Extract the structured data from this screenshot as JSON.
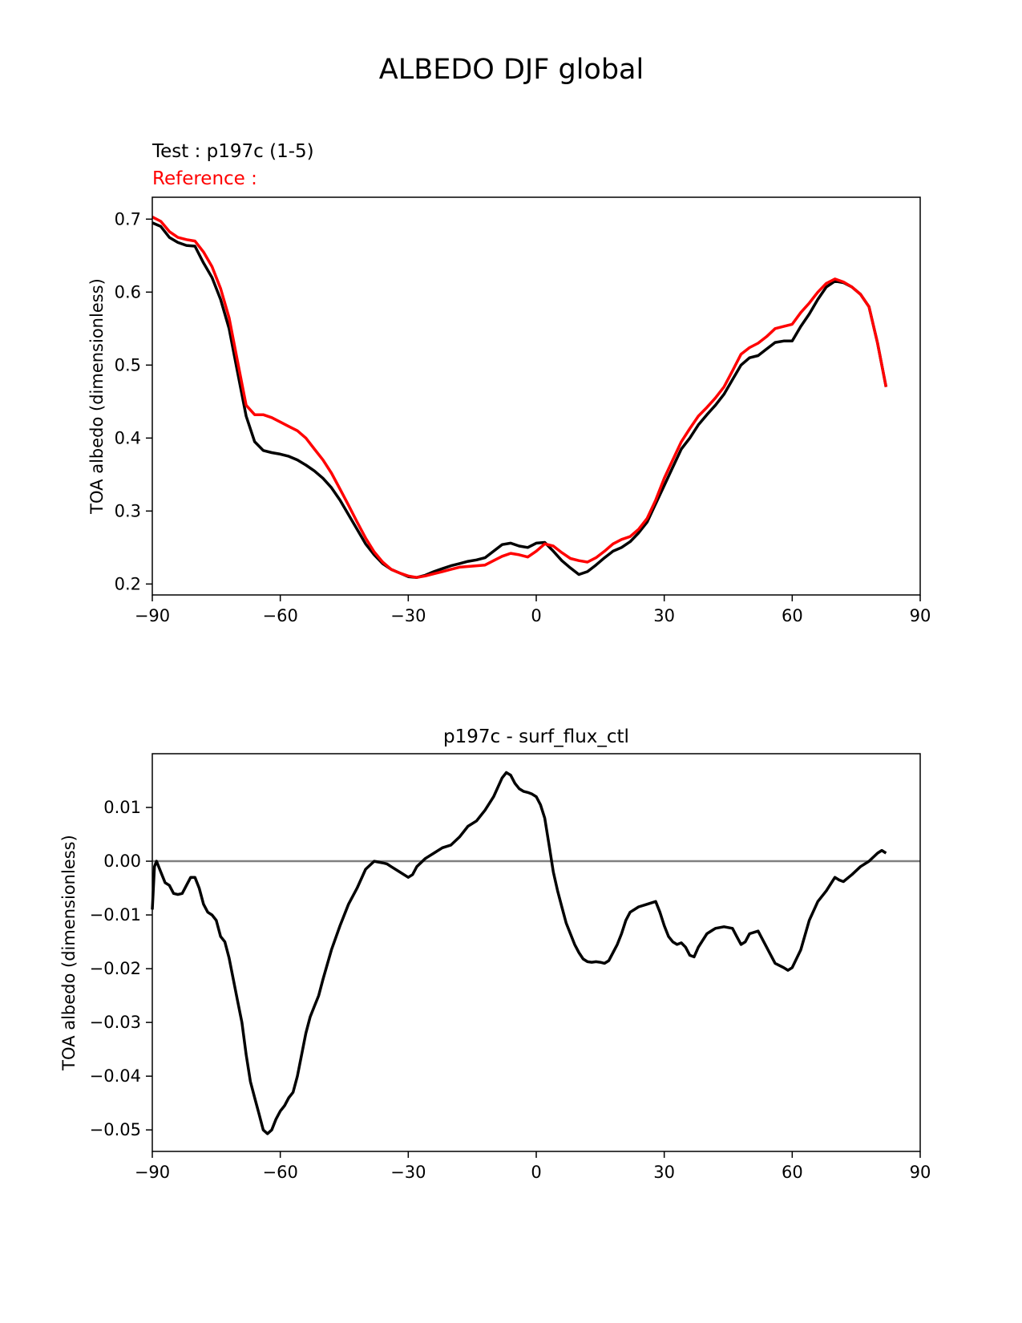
{
  "figure": {
    "title": "ALBEDO DJF global"
  },
  "chart_data": [
    {
      "type": "line",
      "test_label": "Test : p197c (1-5)",
      "reference_label": "Reference :",
      "ylabel": "TOA albedo (dimensionless)",
      "xlabel": "",
      "xlim": [
        -90,
        90
      ],
      "ylim": [
        0.185,
        0.73
      ],
      "xticks": [
        -90,
        -60,
        -30,
        0,
        30,
        60,
        90
      ],
      "xtick_labels": [
        "−90",
        "−60",
        "−30",
        "0",
        "30",
        "60",
        "90"
      ],
      "yticks": [
        0.2,
        0.3,
        0.4,
        0.5,
        0.6,
        0.7
      ],
      "ytick_labels": [
        "0.2",
        "0.3",
        "0.4",
        "0.5",
        "0.6",
        "0.7"
      ],
      "grid": false,
      "series": [
        {
          "color": "#000000",
          "x": [
            -90,
            -88,
            -86,
            -84,
            -82,
            -80,
            -78,
            -76,
            -74,
            -72,
            -70,
            -68,
            -66,
            -64,
            -62,
            -60,
            -58,
            -56,
            -54,
            -52,
            -50,
            -48,
            -46,
            -44,
            -42,
            -40,
            -38,
            -36,
            -34,
            -32,
            -30,
            -28,
            -26,
            -24,
            -22,
            -20,
            -18,
            -16,
            -14,
            -12,
            -10,
            -8,
            -6,
            -4,
            -2,
            0,
            2,
            4,
            6,
            8,
            10,
            12,
            14,
            16,
            18,
            20,
            22,
            24,
            26,
            28,
            30,
            32,
            34,
            36,
            38,
            40,
            42,
            44,
            46,
            48,
            50,
            52,
            54,
            56,
            58,
            60,
            62,
            64,
            66,
            68,
            70,
            72,
            74,
            76,
            78,
            80,
            82
          ],
          "y": [
            0.695,
            0.69,
            0.675,
            0.668,
            0.664,
            0.663,
            0.64,
            0.62,
            0.59,
            0.55,
            0.49,
            0.43,
            0.395,
            0.383,
            0.38,
            0.378,
            0.375,
            0.37,
            0.363,
            0.355,
            0.345,
            0.332,
            0.315,
            0.295,
            0.275,
            0.255,
            0.24,
            0.228,
            0.22,
            0.215,
            0.21,
            0.209,
            0.212,
            0.217,
            0.221,
            0.225,
            0.228,
            0.231,
            0.233,
            0.236,
            0.245,
            0.254,
            0.256,
            0.252,
            0.25,
            0.256,
            0.257,
            0.245,
            0.232,
            0.222,
            0.213,
            0.217,
            0.226,
            0.236,
            0.245,
            0.25,
            0.258,
            0.27,
            0.285,
            0.31,
            0.335,
            0.36,
            0.385,
            0.4,
            0.418,
            0.432,
            0.445,
            0.46,
            0.48,
            0.5,
            0.51,
            0.513,
            0.522,
            0.531,
            0.533,
            0.533,
            0.553,
            0.57,
            0.59,
            0.607,
            0.615,
            0.613,
            0.607,
            0.597,
            0.58,
            0.53,
            0.47
          ]
        },
        {
          "color": "#ff0000",
          "x": [
            -90,
            -88,
            -86,
            -84,
            -82,
            -80,
            -78,
            -76,
            -74,
            -72,
            -70,
            -68,
            -66,
            -64,
            -62,
            -60,
            -58,
            -56,
            -54,
            -52,
            -50,
            -48,
            -46,
            -44,
            -42,
            -40,
            -38,
            -36,
            -34,
            -32,
            -30,
            -28,
            -26,
            -24,
            -22,
            -20,
            -18,
            -16,
            -14,
            -12,
            -10,
            -8,
            -6,
            -4,
            -2,
            0,
            2,
            4,
            6,
            8,
            10,
            12,
            14,
            16,
            18,
            20,
            22,
            24,
            26,
            28,
            30,
            32,
            34,
            36,
            38,
            40,
            42,
            44,
            46,
            48,
            50,
            52,
            54,
            56,
            58,
            60,
            62,
            64,
            66,
            68,
            70,
            72,
            74,
            76,
            78,
            80,
            82
          ],
          "y": [
            0.703,
            0.697,
            0.683,
            0.675,
            0.672,
            0.67,
            0.655,
            0.635,
            0.605,
            0.565,
            0.505,
            0.445,
            0.432,
            0.432,
            0.428,
            0.422,
            0.416,
            0.41,
            0.4,
            0.385,
            0.37,
            0.352,
            0.33,
            0.308,
            0.285,
            0.263,
            0.244,
            0.23,
            0.22,
            0.215,
            0.211,
            0.209,
            0.211,
            0.214,
            0.217,
            0.22,
            0.223,
            0.224,
            0.225,
            0.226,
            0.232,
            0.238,
            0.242,
            0.24,
            0.237,
            0.245,
            0.255,
            0.252,
            0.243,
            0.235,
            0.232,
            0.23,
            0.236,
            0.245,
            0.255,
            0.261,
            0.265,
            0.275,
            0.29,
            0.315,
            0.345,
            0.37,
            0.395,
            0.413,
            0.43,
            0.442,
            0.455,
            0.47,
            0.492,
            0.515,
            0.524,
            0.53,
            0.539,
            0.55,
            0.553,
            0.556,
            0.572,
            0.585,
            0.6,
            0.612,
            0.618,
            0.614,
            0.607,
            0.597,
            0.58,
            0.53,
            0.47
          ]
        }
      ]
    },
    {
      "type": "line",
      "title": "p197c - surf_flux_ctl",
      "ylabel": "TOA albedo (dimensionless)",
      "xlabel": "",
      "xlim": [
        -90,
        90
      ],
      "ylim": [
        -0.054,
        0.02
      ],
      "xticks": [
        -90,
        -60,
        -30,
        0,
        30,
        60,
        90
      ],
      "xtick_labels": [
        "−90",
        "−60",
        "−30",
        "0",
        "30",
        "60",
        "90"
      ],
      "yticks": [
        -0.05,
        -0.04,
        -0.03,
        -0.02,
        -0.01,
        0.0,
        0.01
      ],
      "ytick_labels": [
        "−0.05",
        "−0.04",
        "−0.03",
        "−0.02",
        "−0.01",
        "0.00",
        "0.01"
      ],
      "grid": false,
      "zero_line": {
        "y": 0,
        "color": "#808080"
      },
      "series": [
        {
          "color": "#000000",
          "x": [
            -90,
            -89.5,
            -89,
            -88,
            -87,
            -86,
            -85,
            -84,
            -83,
            -82,
            -81,
            -80,
            -79,
            -78,
            -77,
            -76,
            -75,
            -74,
            -73,
            -72,
            -71,
            -70,
            -69,
            -68,
            -67,
            -66,
            -65,
            -64,
            -63,
            -62,
            -61,
            -60,
            -59,
            -58,
            -57,
            -56,
            -55,
            -54,
            -53,
            -52,
            -51,
            -50,
            -48,
            -46,
            -44,
            -42,
            -40,
            -38,
            -36,
            -35,
            -34,
            -32,
            -30,
            -29,
            -28,
            -26,
            -24,
            -22,
            -20,
            -18,
            -16,
            -14,
            -12,
            -10,
            -8,
            -7,
            -6,
            -5,
            -4,
            -3,
            -2,
            -1,
            0,
            1,
            2,
            3,
            4,
            5,
            6,
            7,
            8,
            9,
            10,
            11,
            12,
            13,
            14,
            15,
            16,
            17,
            18,
            19,
            20,
            21,
            22,
            24,
            26,
            28,
            29,
            30,
            31,
            32,
            33,
            34,
            35,
            36,
            37,
            38,
            40,
            42,
            44,
            46,
            47,
            48,
            49,
            50,
            52,
            54,
            56,
            58,
            59,
            60,
            62,
            64,
            66,
            68,
            70,
            71,
            72,
            74,
            76,
            78,
            80,
            81,
            82
          ],
          "y": [
            -0.009,
            -0.001,
            0.0,
            -0.002,
            -0.004,
            -0.0045,
            -0.006,
            -0.0062,
            -0.006,
            -0.0045,
            -0.003,
            -0.003,
            -0.005,
            -0.008,
            -0.0095,
            -0.01,
            -0.011,
            -0.014,
            -0.015,
            -0.018,
            -0.022,
            -0.026,
            -0.03,
            -0.036,
            -0.041,
            -0.044,
            -0.047,
            -0.05,
            -0.0507,
            -0.05,
            -0.048,
            -0.0465,
            -0.0455,
            -0.044,
            -0.043,
            -0.04,
            -0.036,
            -0.032,
            -0.029,
            -0.027,
            -0.025,
            -0.022,
            -0.0165,
            -0.012,
            -0.008,
            -0.005,
            -0.0015,
            0.0,
            -0.0003,
            -0.0005,
            -0.001,
            -0.002,
            -0.003,
            -0.0025,
            -0.001,
            0.0005,
            0.0015,
            0.0025,
            0.003,
            0.0045,
            0.0065,
            0.0075,
            0.0095,
            0.012,
            0.0155,
            0.0165,
            0.016,
            0.0145,
            0.0135,
            0.013,
            0.0128,
            0.0125,
            0.012,
            0.0105,
            0.008,
            0.003,
            -0.002,
            -0.0055,
            -0.0085,
            -0.0115,
            -0.0135,
            -0.0155,
            -0.017,
            -0.0182,
            -0.0187,
            -0.0188,
            -0.0187,
            -0.0188,
            -0.019,
            -0.0185,
            -0.017,
            -0.0155,
            -0.0135,
            -0.011,
            -0.0095,
            -0.0085,
            -0.008,
            -0.0075,
            -0.0095,
            -0.012,
            -0.014,
            -0.015,
            -0.0155,
            -0.0152,
            -0.016,
            -0.0175,
            -0.0178,
            -0.016,
            -0.0135,
            -0.0125,
            -0.0122,
            -0.0125,
            -0.014,
            -0.0155,
            -0.015,
            -0.0135,
            -0.013,
            -0.016,
            -0.019,
            -0.0198,
            -0.0203,
            -0.0198,
            -0.0165,
            -0.011,
            -0.0075,
            -0.0055,
            -0.003,
            -0.0035,
            -0.0038,
            -0.0025,
            -0.001,
            0.0,
            0.0015,
            0.002,
            0.0015
          ]
        }
      ]
    }
  ]
}
